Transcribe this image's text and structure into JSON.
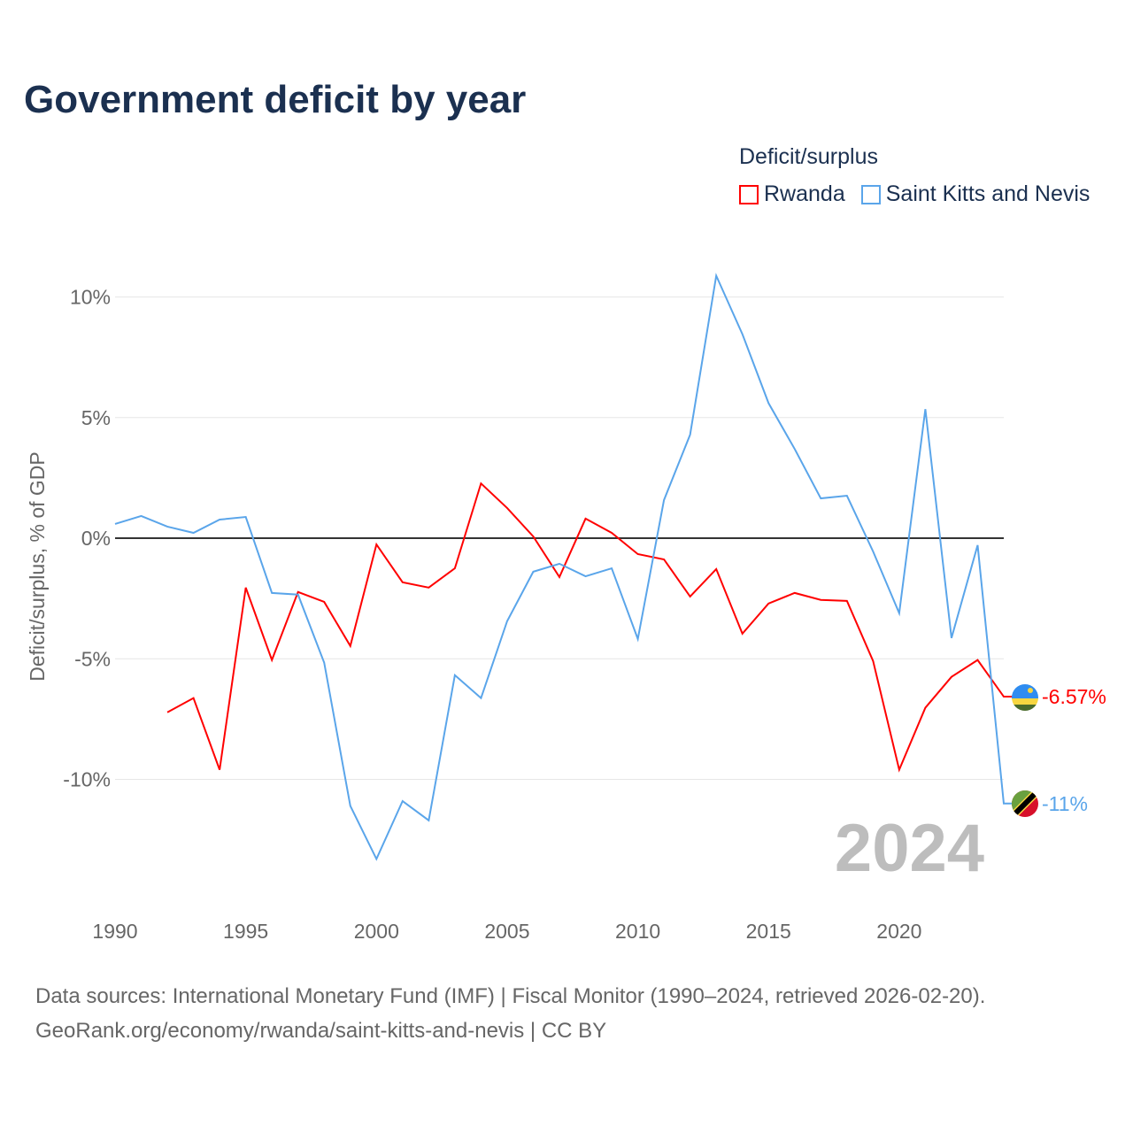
{
  "title": "Government deficit by year",
  "legend": {
    "title": "Deficit/surplus",
    "items": [
      "Rwanda",
      "Saint Kitts and Nevis"
    ]
  },
  "year_watermark": "2024",
  "source_line1": "Data sources: International Monetary Fund (IMF) | Fiscal Monitor (1990–2024, retrieved 2026-02-20).",
  "source_line2": "GeoRank.org/economy/rwanda/saint-kitts-and-nevis | CC BY",
  "chart_data": {
    "type": "line",
    "title": "Government deficit by year",
    "ylabel": "Deficit/surplus, % of GDP",
    "xlabel": "",
    "xlim": [
      1990,
      2024
    ],
    "ylim": [
      -15,
      12
    ],
    "x_ticks": [
      1990,
      1995,
      2000,
      2005,
      2010,
      2015,
      2020
    ],
    "x_tick_labels": [
      "1990",
      "1995",
      "2000",
      "2005",
      "2010",
      "2015",
      "2020"
    ],
    "y_ticks": [
      10,
      5,
      0,
      -5,
      -10
    ],
    "y_tick_labels": [
      "10%",
      "5%",
      "0%",
      "-5%",
      "-10%"
    ],
    "grid": true,
    "legend_position": "top-right",
    "series": [
      {
        "name": "Rwanda",
        "color": "#ff0000",
        "end_label": "-6.57%",
        "start_year": 1992,
        "values": [
          -7.22,
          -6.63,
          -9.6,
          -2.05,
          -5.05,
          -2.23,
          -2.64,
          -4.47,
          -0.26,
          -1.83,
          -2.05,
          -1.25,
          2.27,
          1.25,
          0.07,
          -1.61,
          0.81,
          0.22,
          -0.66,
          -0.88,
          -2.42,
          -1.28,
          -3.96,
          -2.71,
          -2.27,
          -2.56,
          -2.6,
          -5.09,
          -9.6,
          -7.03,
          -5.75,
          -5.05,
          -6.57
        ]
      },
      {
        "name": "Saint Kitts and Nevis",
        "color": "#5aa5ea",
        "end_label": "-11%",
        "start_year": 1990,
        "values": [
          0.59,
          0.92,
          0.48,
          0.22,
          0.77,
          0.88,
          -2.27,
          -2.34,
          -5.16,
          -11.1,
          -13.3,
          -10.9,
          -11.7,
          -5.68,
          -6.63,
          -3.44,
          -1.39,
          -1.06,
          -1.58,
          -1.25,
          -4.18,
          1.58,
          4.29,
          10.88,
          8.46,
          5.6,
          3.7,
          1.65,
          1.76,
          -0.55,
          -3.11,
          5.35,
          -4.14,
          -0.29,
          -11.0
        ]
      }
    ]
  }
}
